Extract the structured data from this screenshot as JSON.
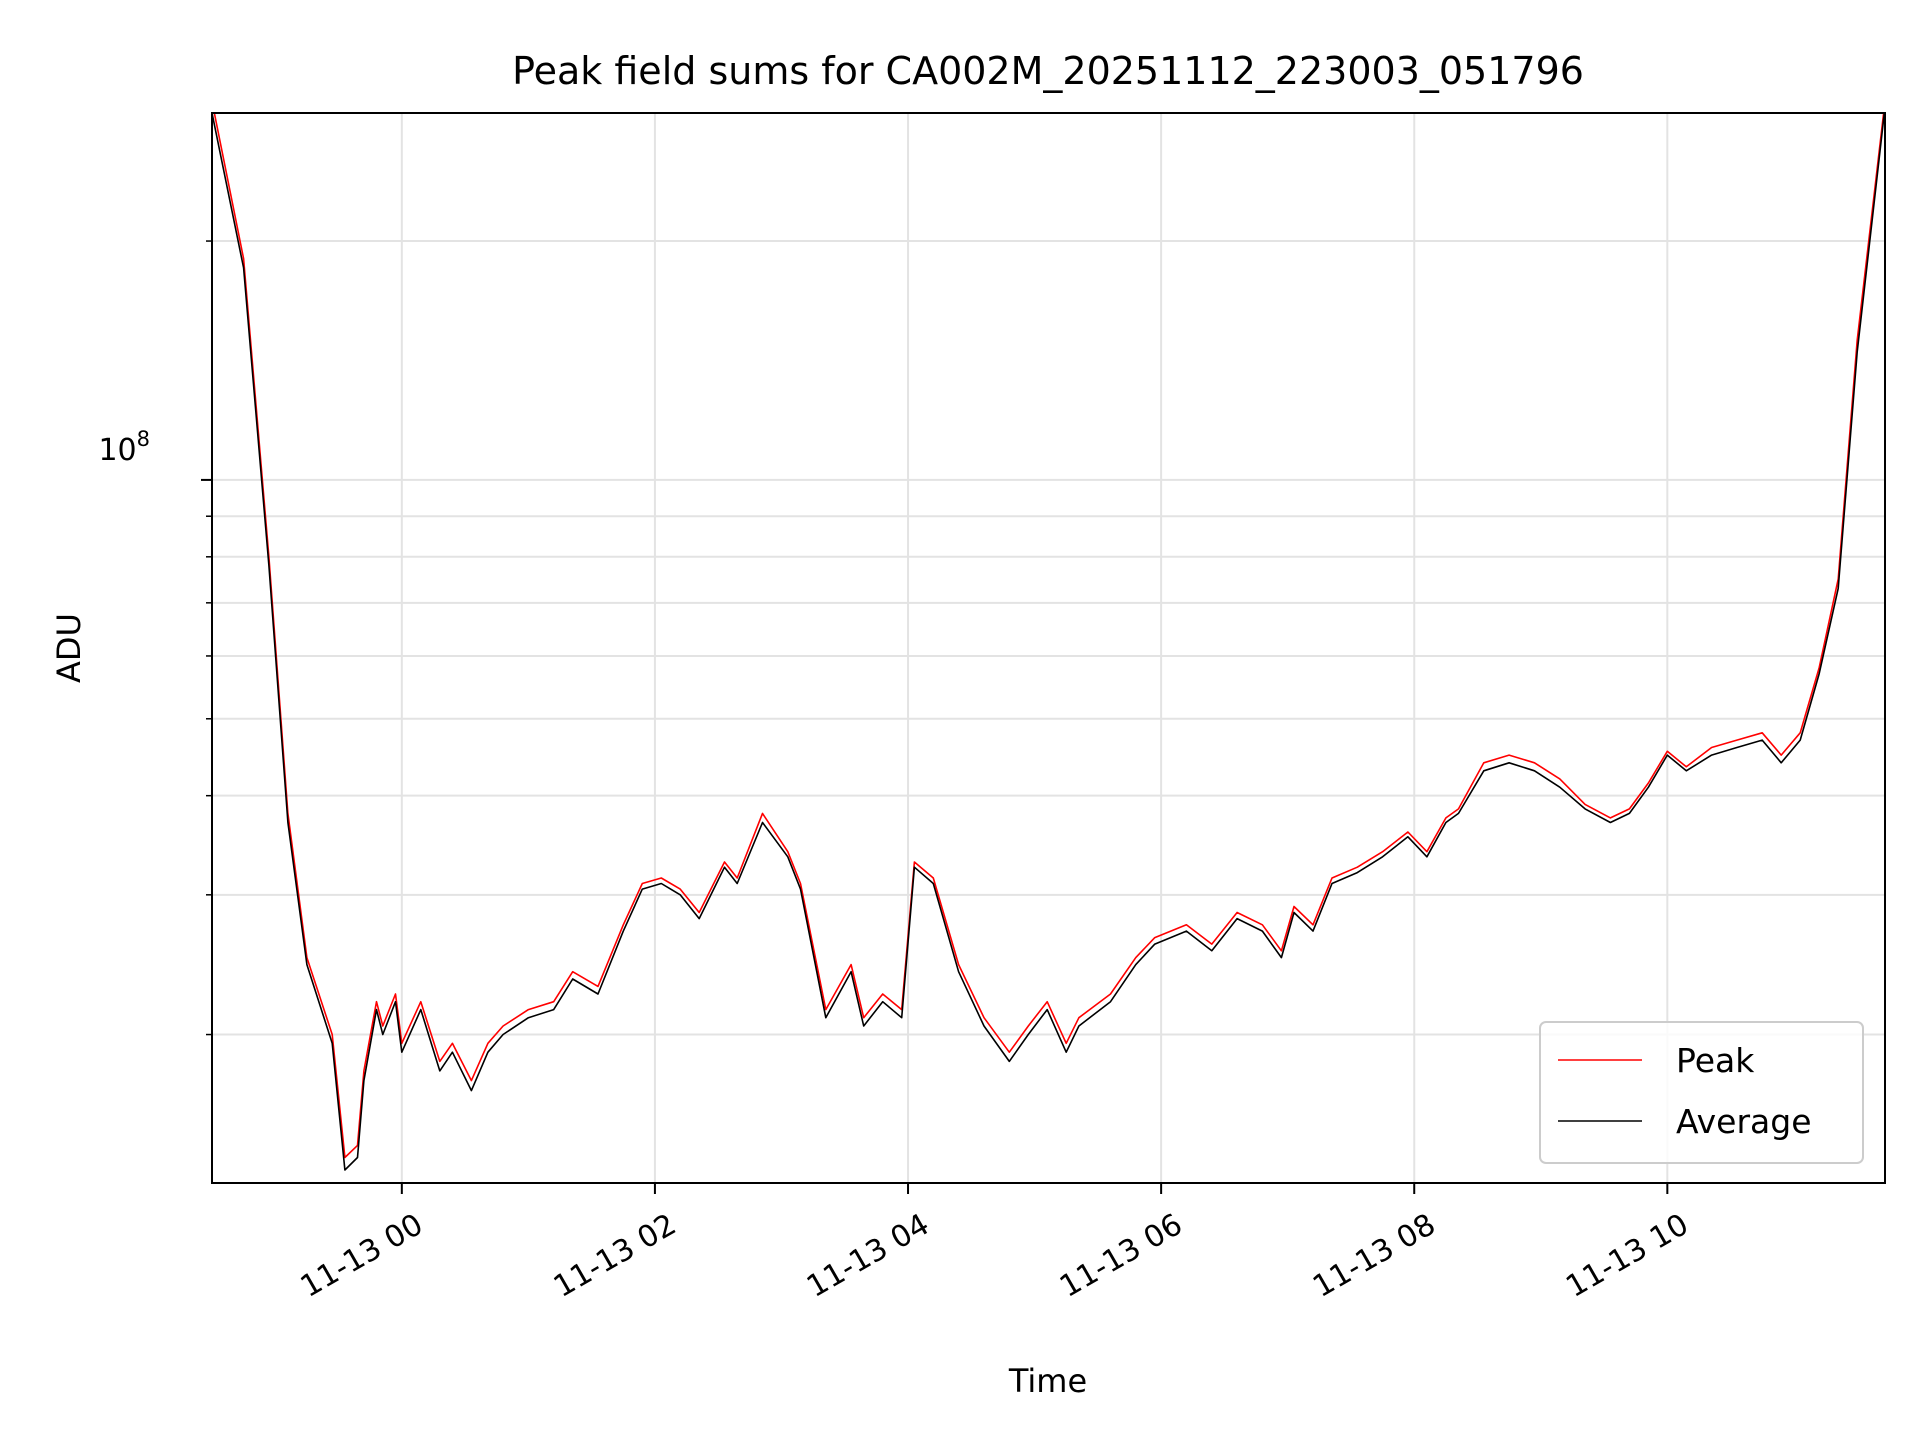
{
  "chart_data": {
    "type": "line",
    "title": "Peak field sums for CA002M_20251112_223003_051796",
    "xlabel": "Time",
    "ylabel": "ADU",
    "yscale": "log",
    "ylim": [
      13000000,
      290000000
    ],
    "xlim": [
      -1.5,
      11.72
    ],
    "grid": true,
    "legend_position": "lower right",
    "x_unit": "hours after 2025-11-13 00:00",
    "x_ticks": [
      0,
      2,
      4,
      6,
      8,
      10
    ],
    "x_tick_labels": [
      "11-13 00",
      "11-13 02",
      "11-13 04",
      "11-13 06",
      "11-13 08",
      "11-13 10"
    ],
    "y_major_tick": {
      "value": 100000000,
      "mantissa": "10",
      "exponent": "8"
    },
    "y_minor_ticks": [
      20000000,
      30000000,
      40000000,
      50000000,
      60000000,
      70000000,
      80000000,
      90000000,
      200000000
    ],
    "series": [
      {
        "name": "Peak",
        "color": "#ff0000",
        "x": [
          -1.5,
          -1.25,
          -1.05,
          -0.9,
          -0.75,
          -0.55,
          -0.45,
          -0.35,
          -0.3,
          -0.2,
          -0.15,
          -0.05,
          0.0,
          0.15,
          0.3,
          0.4,
          0.55,
          0.68,
          0.8,
          1.0,
          1.2,
          1.35,
          1.55,
          1.75,
          1.9,
          2.05,
          2.2,
          2.35,
          2.55,
          2.65,
          2.85,
          3.05,
          3.15,
          3.35,
          3.55,
          3.65,
          3.8,
          3.95,
          4.05,
          4.2,
          4.4,
          4.6,
          4.8,
          4.95,
          5.1,
          5.25,
          5.35,
          5.6,
          5.8,
          5.95,
          6.2,
          6.4,
          6.6,
          6.8,
          6.95,
          7.05,
          7.2,
          7.35,
          7.55,
          7.75,
          7.95,
          8.1,
          8.25,
          8.35,
          8.55,
          8.75,
          8.95,
          9.15,
          9.35,
          9.55,
          9.7,
          9.85,
          10.0,
          10.15,
          10.35,
          10.55,
          10.75,
          10.9,
          11.05,
          11.2,
          11.35,
          11.5,
          11.72
        ],
        "values": [
          300000000,
          190000000,
          80000000,
          38000000,
          25000000,
          20000000,
          14000000,
          14500000,
          18000000,
          22000000,
          20500000,
          22500000,
          19500000,
          22000000,
          18500000,
          19500000,
          17500000,
          19500000,
          20500000,
          21500000,
          22000000,
          24000000,
          23000000,
          27500000,
          31000000,
          31500000,
          30500000,
          28500000,
          33000000,
          31500000,
          38000000,
          34000000,
          31000000,
          21500000,
          24500000,
          21000000,
          22500000,
          21500000,
          33000000,
          31500000,
          24500000,
          21000000,
          19000000,
          20500000,
          22000000,
          19500000,
          21000000,
          22500000,
          25000000,
          26500000,
          27500000,
          26000000,
          28500000,
          27500000,
          25500000,
          29000000,
          27500000,
          31500000,
          32500000,
          34000000,
          36000000,
          34000000,
          37500000,
          38500000,
          44000000,
          45000000,
          44000000,
          42000000,
          39000000,
          37500000,
          38500000,
          41500000,
          45500000,
          43500000,
          46000000,
          47000000,
          48000000,
          45000000,
          48000000,
          58000000,
          75000000,
          150000000,
          300000000
        ]
      },
      {
        "name": "Average",
        "color": "#000000",
        "x": [
          -1.5,
          -1.25,
          -1.05,
          -0.9,
          -0.75,
          -0.55,
          -0.45,
          -0.35,
          -0.3,
          -0.2,
          -0.15,
          -0.05,
          0.0,
          0.15,
          0.3,
          0.4,
          0.55,
          0.68,
          0.8,
          1.0,
          1.2,
          1.35,
          1.55,
          1.75,
          1.9,
          2.05,
          2.2,
          2.35,
          2.55,
          2.65,
          2.85,
          3.05,
          3.15,
          3.35,
          3.55,
          3.65,
          3.8,
          3.95,
          4.05,
          4.2,
          4.4,
          4.6,
          4.8,
          4.95,
          5.1,
          5.25,
          5.35,
          5.6,
          5.8,
          5.95,
          6.2,
          6.4,
          6.6,
          6.8,
          6.95,
          7.05,
          7.2,
          7.35,
          7.55,
          7.75,
          7.95,
          8.1,
          8.25,
          8.35,
          8.55,
          8.75,
          8.95,
          9.15,
          9.35,
          9.55,
          9.7,
          9.85,
          10.0,
          10.15,
          10.35,
          10.55,
          10.75,
          10.9,
          11.05,
          11.2,
          11.35,
          11.5,
          11.72
        ],
        "values": [
          290000000,
          185000000,
          78000000,
          37000000,
          24500000,
          19500000,
          13500000,
          14000000,
          17500000,
          21500000,
          20000000,
          22000000,
          19000000,
          21500000,
          18000000,
          19000000,
          17000000,
          19000000,
          20000000,
          21000000,
          21500000,
          23500000,
          22500000,
          27000000,
          30500000,
          31000000,
          30000000,
          28000000,
          32500000,
          31000000,
          37000000,
          33500000,
          30500000,
          21000000,
          24000000,
          20500000,
          22000000,
          21000000,
          32500000,
          31000000,
          24000000,
          20500000,
          18500000,
          20000000,
          21500000,
          19000000,
          20500000,
          22000000,
          24500000,
          26000000,
          27000000,
          25500000,
          28000000,
          27000000,
          25000000,
          28500000,
          27000000,
          31000000,
          32000000,
          33500000,
          35500000,
          33500000,
          37000000,
          38000000,
          43000000,
          44000000,
          43000000,
          41000000,
          38500000,
          37000000,
          38000000,
          41000000,
          45000000,
          43000000,
          45000000,
          46000000,
          47000000,
          44000000,
          47000000,
          57000000,
          73000000,
          145000000,
          295000000
        ]
      }
    ]
  }
}
